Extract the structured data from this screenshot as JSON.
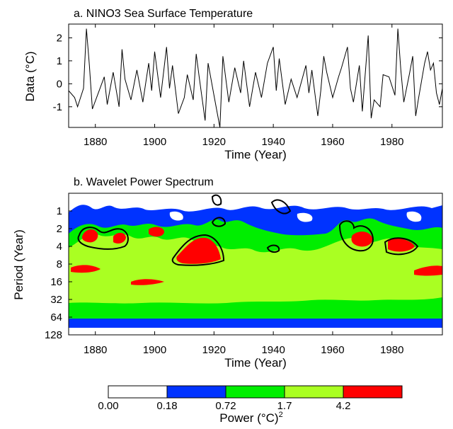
{
  "chart_data": [
    {
      "type": "line",
      "title": "a. NINO3 Sea Surface Temperature",
      "xlabel": "Time (Year)",
      "ylabel": "Data (°C)",
      "xlim": [
        1871,
        1997
      ],
      "ylim": [
        -1.9,
        2.6
      ],
      "xticks": [
        1880,
        1900,
        1920,
        1940,
        1960,
        1980
      ],
      "yticks": [
        -1,
        0,
        1,
        2
      ],
      "grid": false,
      "series": [
        {
          "x": [
            1871,
            1873,
            1874,
            1876,
            1877,
            1878,
            1879,
            1881,
            1883,
            1884,
            1886,
            1888,
            1889,
            1890,
            1892,
            1894,
            1896,
            1898,
            1899,
            1900,
            1902,
            1904,
            1905,
            1906,
            1908,
            1910,
            1911,
            1913,
            1914,
            1915,
            1917,
            1918,
            1920,
            1922,
            1923,
            1925,
            1927,
            1929,
            1930,
            1932,
            1934,
            1936,
            1938,
            1940,
            1941,
            1942,
            1944,
            1946,
            1948,
            1951,
            1952,
            1953,
            1955,
            1956,
            1957,
            1958,
            1960,
            1962,
            1963,
            1965,
            1966,
            1967,
            1969,
            1970,
            1972,
            1973,
            1974,
            1976,
            1977,
            1979,
            1981,
            1982,
            1983,
            1984,
            1986,
            1987,
            1988,
            1989,
            1991,
            1992,
            1993,
            1994,
            1995,
            1996,
            1997
          ],
          "y": [
            -0.3,
            -0.6,
            -1.0,
            -0.2,
            2.4,
            0.8,
            -1.1,
            -0.4,
            0.3,
            -0.9,
            0.5,
            -1.0,
            1.5,
            0.2,
            -0.7,
            0.6,
            -0.8,
            0.9,
            -0.3,
            1.4,
            -0.6,
            1.6,
            -0.2,
            0.8,
            -1.3,
            -0.6,
            0.4,
            -0.7,
            1.3,
            0.3,
            -1.6,
            0.9,
            -0.5,
            -1.9,
            1.2,
            -0.8,
            0.7,
            -0.4,
            1.0,
            -1.0,
            0.5,
            -0.6,
            0.9,
            1.6,
            -0.3,
            1.1,
            -0.9,
            0.2,
            -0.6,
            0.8,
            -0.4,
            0.6,
            -1.4,
            -0.3,
            1.2,
            0.5,
            -0.6,
            0.3,
            0.7,
            1.6,
            -0.2,
            -0.8,
            0.8,
            -1.2,
            2.1,
            -1.5,
            -0.7,
            -1.0,
            0.4,
            0.3,
            -0.5,
            2.4,
            0.6,
            -0.8,
            0.5,
            1.2,
            -1.4,
            -0.6,
            0.9,
            1.4,
            0.6,
            0.9,
            -0.4,
            -0.9,
            -0.2
          ]
        }
      ]
    },
    {
      "type": "heatmap",
      "title": "b. Wavelet Power Spectrum",
      "xlabel": "Time (Year)",
      "ylabel": "Period (Year)",
      "xlim": [
        1871,
        1997
      ],
      "ylim": [
        0.5,
        128
      ],
      "yscale": "log2",
      "yaxis_inverted": true,
      "xticks": [
        1880,
        1900,
        1920,
        1940,
        1960,
        1980
      ],
      "yticks": [
        1,
        2,
        4,
        8,
        16,
        32,
        64,
        128
      ],
      "colorbar": {
        "label": "Power (°C)",
        "label_superscript": "2",
        "levels": [
          "0.00",
          "0.18",
          "0.72",
          "1.7",
          "4.2"
        ],
        "colors": [
          "#ffffff",
          "#0033ff",
          "#00ee00",
          "#aaff22",
          "#ff0000"
        ]
      }
    }
  ]
}
